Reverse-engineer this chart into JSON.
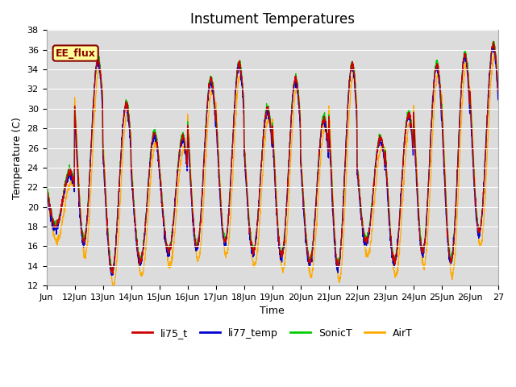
{
  "title": "Instument Temperatures",
  "xlabel": "Time",
  "ylabel": "Temperature (C)",
  "ylim": [
    12,
    38
  ],
  "xlim": [
    0,
    16
  ],
  "x_tick_labels": [
    "Jun",
    "12Jun",
    "13Jun",
    "14Jun",
    "15Jun",
    "16Jun",
    "17Jun",
    "18Jun",
    "19Jun",
    "20Jun",
    "21Jun",
    "22Jun",
    "23Jun",
    "24Jun",
    "25Jun",
    "26Jun",
    "27"
  ],
  "background_color": "#dcdcdc",
  "line_colors": {
    "li75_t": "#cc0000",
    "li77_temp": "#0000cc",
    "SonicT": "#00cc00",
    "AirT": "#ffaa00"
  },
  "ee_flux_label": "EE_flux",
  "ee_flux_bg": "#ffff99",
  "ee_flux_border": "#880000",
  "title_fontsize": 12,
  "axis_fontsize": 9,
  "tick_fontsize": 8,
  "legend_fontsize": 9,
  "daily_mins_base": [
    18.0,
    16.5,
    13.5,
    14.5,
    15.5,
    16.0,
    16.5,
    15.5,
    15.0,
    14.5,
    14.0,
    16.5,
    14.5,
    15.5,
    14.5,
    17.5
  ],
  "daily_maxs_base": [
    23.5,
    35.0,
    30.5,
    27.5,
    27.0,
    33.0,
    34.5,
    30.0,
    33.0,
    29.0,
    34.5,
    27.0,
    29.5,
    34.5,
    35.5,
    36.5
  ]
}
